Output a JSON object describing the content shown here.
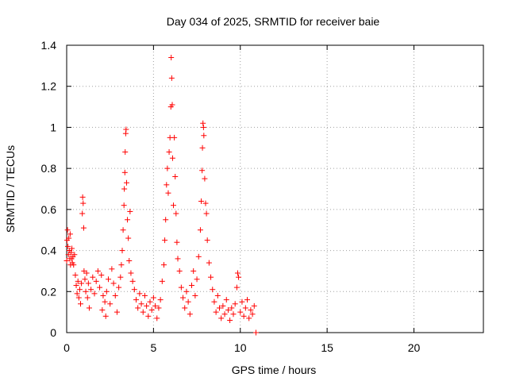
{
  "chart_data": {
    "type": "scatter",
    "title": "Day 034 of 2025, SRMTID for receiver baie",
    "xlabel": "GPS time / hours",
    "ylabel": "SRMTID / TECUs",
    "xlim": [
      0,
      24
    ],
    "ylim": [
      0,
      1.4
    ],
    "xticks": [
      0,
      5,
      10,
      15,
      20
    ],
    "yticks": [
      0,
      0.2,
      0.4,
      0.6,
      0.8,
      1,
      1.2,
      1.4
    ],
    "xtick_labels": [
      "0",
      "5",
      "10",
      "15",
      "20"
    ],
    "ytick_labels": [
      "0",
      "0.2",
      "0.4",
      "0.6",
      "0.8",
      "1",
      "1.2",
      "1.4"
    ],
    "grid": true,
    "marker": "+",
    "series": [
      {
        "name": "SRMTID",
        "color": "#ff0000",
        "points": [
          [
            0.0,
            0.35
          ],
          [
            0.02,
            0.45
          ],
          [
            0.05,
            0.5
          ],
          [
            0.07,
            0.42
          ],
          [
            0.1,
            0.38
          ],
          [
            0.12,
            0.46
          ],
          [
            0.15,
            0.4
          ],
          [
            0.18,
            0.36
          ],
          [
            0.2,
            0.48
          ],
          [
            0.22,
            0.33
          ],
          [
            0.25,
            0.39
          ],
          [
            0.28,
            0.36
          ],
          [
            0.3,
            0.41
          ],
          [
            0.33,
            0.34
          ],
          [
            0.36,
            0.37
          ],
          [
            0.4,
            0.33
          ],
          [
            0.45,
            0.38
          ],
          [
            0.5,
            0.28
          ],
          [
            0.55,
            0.23
          ],
          [
            0.6,
            0.19
          ],
          [
            0.65,
            0.25
          ],
          [
            0.7,
            0.17
          ],
          [
            0.75,
            0.21
          ],
          [
            0.8,
            0.14
          ],
          [
            0.85,
            0.24
          ],
          [
            0.9,
            0.58
          ],
          [
            0.92,
            0.66
          ],
          [
            0.95,
            0.63
          ],
          [
            0.98,
            0.51
          ],
          [
            1.0,
            0.3
          ],
          [
            1.05,
            0.26
          ],
          [
            1.1,
            0.2
          ],
          [
            1.15,
            0.29
          ],
          [
            1.2,
            0.17
          ],
          [
            1.25,
            0.24
          ],
          [
            1.3,
            0.12
          ],
          [
            1.4,
            0.21
          ],
          [
            1.5,
            0.27
          ],
          [
            1.6,
            0.19
          ],
          [
            1.7,
            0.25
          ],
          [
            1.8,
            0.3
          ],
          [
            1.9,
            0.22
          ],
          [
            2.0,
            0.28
          ],
          [
            2.05,
            0.11
          ],
          [
            2.1,
            0.18
          ],
          [
            2.2,
            0.15
          ],
          [
            2.25,
            0.08
          ],
          [
            2.3,
            0.2
          ],
          [
            2.4,
            0.26
          ],
          [
            2.5,
            0.14
          ],
          [
            2.6,
            0.31
          ],
          [
            2.7,
            0.24
          ],
          [
            2.8,
            0.18
          ],
          [
            2.9,
            0.1
          ],
          [
            3.0,
            0.22
          ],
          [
            3.1,
            0.27
          ],
          [
            3.15,
            0.33
          ],
          [
            3.2,
            0.4
          ],
          [
            3.25,
            0.5
          ],
          [
            3.3,
            0.62
          ],
          [
            3.32,
            0.7
          ],
          [
            3.35,
            0.78
          ],
          [
            3.37,
            0.88
          ],
          [
            3.4,
            0.97
          ],
          [
            3.42,
            0.99
          ],
          [
            3.45,
            0.73
          ],
          [
            3.5,
            0.55
          ],
          [
            3.55,
            0.46
          ],
          [
            3.6,
            0.35
          ],
          [
            3.65,
            0.59
          ],
          [
            3.7,
            0.29
          ],
          [
            3.8,
            0.25
          ],
          [
            3.9,
            0.21
          ],
          [
            4.0,
            0.16
          ],
          [
            4.1,
            0.12
          ],
          [
            4.2,
            0.19
          ],
          [
            4.3,
            0.14
          ],
          [
            4.4,
            0.1
          ],
          [
            4.5,
            0.18
          ],
          [
            4.6,
            0.13
          ],
          [
            4.7,
            0.08
          ],
          [
            4.8,
            0.15
          ],
          [
            4.9,
            0.11
          ],
          [
            5.0,
            0.17
          ],
          [
            5.1,
            0.13
          ],
          [
            5.2,
            0.07
          ],
          [
            5.3,
            0.12
          ],
          [
            5.4,
            0.16
          ],
          [
            5.5,
            0.25
          ],
          [
            5.6,
            0.33
          ],
          [
            5.65,
            0.45
          ],
          [
            5.7,
            0.55
          ],
          [
            5.75,
            0.72
          ],
          [
            5.8,
            0.8
          ],
          [
            5.85,
            0.68
          ],
          [
            5.9,
            0.88
          ],
          [
            5.95,
            0.95
          ],
          [
            6.0,
            1.1
          ],
          [
            6.02,
            1.34
          ],
          [
            6.05,
            1.24
          ],
          [
            6.08,
            1.11
          ],
          [
            6.1,
            0.85
          ],
          [
            6.15,
            0.62
          ],
          [
            6.2,
            0.95
          ],
          [
            6.25,
            0.76
          ],
          [
            6.3,
            0.58
          ],
          [
            6.35,
            0.44
          ],
          [
            6.4,
            0.36
          ],
          [
            6.5,
            0.3
          ],
          [
            6.6,
            0.22
          ],
          [
            6.7,
            0.17
          ],
          [
            6.8,
            0.12
          ],
          [
            6.9,
            0.2
          ],
          [
            7.0,
            0.15
          ],
          [
            7.1,
            0.09
          ],
          [
            7.2,
            0.23
          ],
          [
            7.3,
            0.3
          ],
          [
            7.4,
            0.18
          ],
          [
            7.5,
            0.26
          ],
          [
            7.6,
            0.37
          ],
          [
            7.7,
            0.5
          ],
          [
            7.75,
            0.64
          ],
          [
            7.8,
            0.79
          ],
          [
            7.82,
            0.9
          ],
          [
            7.85,
            1.02
          ],
          [
            7.88,
            1.0
          ],
          [
            7.9,
            0.96
          ],
          [
            7.95,
            0.75
          ],
          [
            8.0,
            0.63
          ],
          [
            8.05,
            0.58
          ],
          [
            8.1,
            0.45
          ],
          [
            8.2,
            0.34
          ],
          [
            8.3,
            0.27
          ],
          [
            8.4,
            0.21
          ],
          [
            8.5,
            0.15
          ],
          [
            8.6,
            0.1
          ],
          [
            8.7,
            0.18
          ],
          [
            8.8,
            0.12
          ],
          [
            8.9,
            0.07
          ],
          [
            9.0,
            0.13
          ],
          [
            9.1,
            0.09
          ],
          [
            9.2,
            0.16
          ],
          [
            9.3,
            0.11
          ],
          [
            9.4,
            0.06
          ],
          [
            9.5,
            0.12
          ],
          [
            9.6,
            0.09
          ],
          [
            9.7,
            0.14
          ],
          [
            9.8,
            0.22
          ],
          [
            9.85,
            0.29
          ],
          [
            9.9,
            0.27
          ],
          [
            10.0,
            0.1
          ],
          [
            10.1,
            0.15
          ],
          [
            10.2,
            0.08
          ],
          [
            10.3,
            0.12
          ],
          [
            10.4,
            0.16
          ],
          [
            10.5,
            0.07
          ],
          [
            10.6,
            0.11
          ],
          [
            10.7,
            0.09
          ],
          [
            10.8,
            0.13
          ],
          [
            10.9,
            0.0
          ]
        ]
      }
    ]
  }
}
